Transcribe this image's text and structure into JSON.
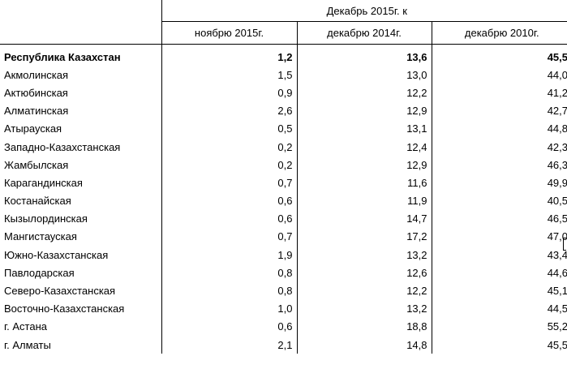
{
  "header": {
    "group_label": "Декабрь 2015г. к",
    "columns": [
      "ноябрю 2015г.",
      "декабрю 2014г.",
      "декабрю 2010г."
    ]
  },
  "rows": [
    {
      "region": "Республика Казахстан",
      "nov2015": "1,2",
      "dec2014": "13,6",
      "dec2010": "45,5"
    },
    {
      "region": "Акмолинская",
      "nov2015": "1,5",
      "dec2014": "13,0",
      "dec2010": "44,0"
    },
    {
      "region": "Актюбинская",
      "nov2015": "0,9",
      "dec2014": "12,2",
      "dec2010": "41,2"
    },
    {
      "region": "Алматинская",
      "nov2015": "2,6",
      "dec2014": "12,9",
      "dec2010": "42,7"
    },
    {
      "region": "Атырауская",
      "nov2015": "0,5",
      "dec2014": "13,1",
      "dec2010": "44,8"
    },
    {
      "region": "Западно-Казахстанская",
      "nov2015": "0,2",
      "dec2014": "12,4",
      "dec2010": "42,3"
    },
    {
      "region": "Жамбылская",
      "nov2015": "0,2",
      "dec2014": "12,9",
      "dec2010": "46,3"
    },
    {
      "region": "Карагандинская",
      "nov2015": "0,7",
      "dec2014": "11,6",
      "dec2010": "49,9"
    },
    {
      "region": "Костанайская",
      "nov2015": "0,6",
      "dec2014": "11,9",
      "dec2010": "40,5"
    },
    {
      "region": "Кызылординская",
      "nov2015": "0,6",
      "dec2014": "14,7",
      "dec2010": "46,5"
    },
    {
      "region": "Мангистауская",
      "nov2015": "0,7",
      "dec2014": "17,2",
      "dec2010": "47,0"
    },
    {
      "region": "Южно-Казахстанская",
      "nov2015": "1,9",
      "dec2014": "13,2",
      "dec2010": "43,4"
    },
    {
      "region": "Павлодарская",
      "nov2015": "0,8",
      "dec2014": "12,6",
      "dec2010": "44,6"
    },
    {
      "region": "Северо-Казахстанская",
      "nov2015": "0,8",
      "dec2014": "12,2",
      "dec2010": "45,1"
    },
    {
      "region": "Восточно-Казахстанская",
      "nov2015": "1,0",
      "dec2014": "13,2",
      "dec2010": "44,5"
    },
    {
      "region": "г. Астана",
      "nov2015": "0,6",
      "dec2014": "18,8",
      "dec2010": "55,2"
    },
    {
      "region": "г. Алматы",
      "nov2015": "2,1",
      "dec2014": "14,8",
      "dec2010": "45,5"
    }
  ]
}
